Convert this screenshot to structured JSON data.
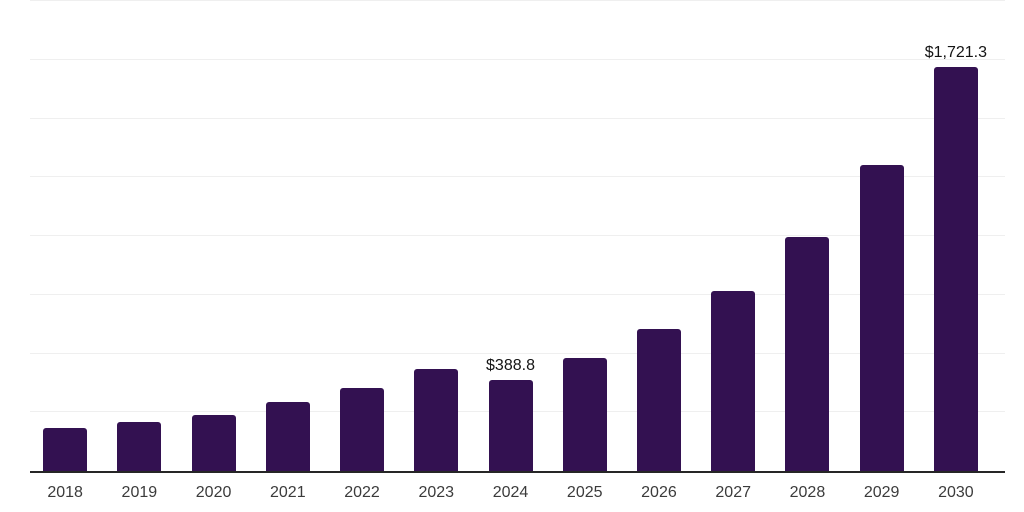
{
  "chart_data": {
    "type": "bar",
    "title": "",
    "categories": [
      "2018",
      "2019",
      "2020",
      "2021",
      "2022",
      "2023",
      "2024",
      "2025",
      "2026",
      "2027",
      "2028",
      "2029",
      "2030"
    ],
    "values": [
      185,
      210,
      240,
      294,
      354,
      432,
      388.8,
      479,
      603,
      766,
      994,
      1302,
      1721.3
    ],
    "data_labels": [
      {
        "category": "2024",
        "text": "$388.8"
      },
      {
        "category": "2030",
        "text": "$1,721.3"
      }
    ],
    "xlabel": "",
    "ylabel": "",
    "ylim": [
      0,
      2000
    ],
    "gridline_step": 250,
    "grid": true,
    "legend": false,
    "colors": {
      "bar": "#331151",
      "axis": "#262626",
      "gridline": "#efefef",
      "tick_label": "#3b3b3b",
      "data_label": "#141414",
      "background": "#ffffff"
    }
  }
}
